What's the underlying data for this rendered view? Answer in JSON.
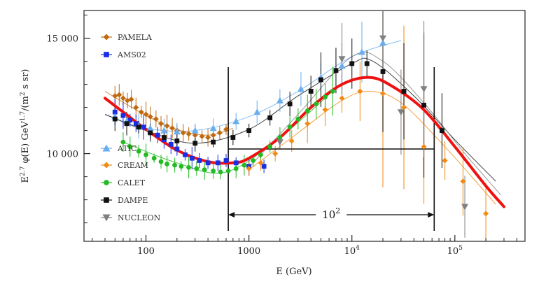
{
  "chart_data": {
    "type": "scatter",
    "title": "",
    "xlabel": "E (GeV)",
    "ylabel": "E^2.7 φ(E)  GeV^1.7/(m^2 s sr)",
    "xlabel_text": "E  (GeV)",
    "ylabel_main": "E",
    "ylabel_sup1": "2.7",
    "ylabel_mid": " φ(E)  GeV",
    "ylabel_sup2": "1.7",
    "ylabel_end": "/(m",
    "ylabel_sup3": "2",
    "ylabel_tail": " s sr)",
    "xscale": "log",
    "xlim": [
      25,
      480000
    ],
    "ylim": [
      6200,
      16200
    ],
    "xticks": [
      {
        "value": 100,
        "label": "100"
      },
      {
        "value": 1000,
        "label": "1000"
      },
      {
        "value": 10000,
        "label": "10",
        "sup": "4"
      },
      {
        "value": 100000,
        "label": "10",
        "sup": "5"
      }
    ],
    "yticks": [
      {
        "value": 10000,
        "label": "10 000"
      },
      {
        "value": 15000,
        "label": "15 000"
      }
    ],
    "annotation": {
      "label": "10",
      "sup": "2",
      "from_x": 630,
      "to_x": 63000,
      "line_y": 10200
    },
    "colors": {
      "PAMELA": "#c06a10",
      "AMS02": "#1a2ee6",
      "ATIC": "#6aaef0",
      "CREAM": "#f38a14",
      "CALET": "#22bb22",
      "DAMPE": "#111111",
      "NUCLEON": "#808080",
      "fit": "#ee1111"
    },
    "series": [
      {
        "name": "PAMELA",
        "marker": "diamond",
        "points": [
          [
            50,
            12500
          ],
          [
            55,
            12550
          ],
          [
            60,
            12400
          ],
          [
            66,
            12300
          ],
          [
            72,
            12350
          ],
          [
            80,
            12000
          ],
          [
            90,
            11800
          ],
          [
            100,
            11700
          ],
          [
            110,
            11600
          ],
          [
            125,
            11500
          ],
          [
            140,
            11300
          ],
          [
            160,
            11200
          ],
          [
            180,
            11100
          ],
          [
            200,
            11000
          ],
          [
            230,
            10900
          ],
          [
            260,
            10850
          ],
          [
            300,
            10800
          ],
          [
            350,
            10750
          ],
          [
            400,
            10700
          ],
          [
            450,
            10800
          ],
          [
            520,
            10900
          ],
          [
            600,
            11050
          ]
        ]
      },
      {
        "name": "AMS02",
        "marker": "square",
        "points": [
          [
            50,
            11800
          ],
          [
            60,
            11650
          ],
          [
            70,
            11450
          ],
          [
            80,
            11300
          ],
          [
            95,
            11150
          ],
          [
            110,
            10950
          ],
          [
            130,
            10800
          ],
          [
            150,
            10600
          ],
          [
            175,
            10400
          ],
          [
            200,
            10200
          ],
          [
            240,
            9950
          ],
          [
            280,
            9800
          ],
          [
            330,
            9700
          ],
          [
            400,
            9600
          ],
          [
            500,
            9600
          ],
          [
            600,
            9700
          ],
          [
            750,
            9600
          ],
          [
            1000,
            9450
          ],
          [
            1400,
            9450
          ]
        ]
      },
      {
        "name": "ATIC",
        "marker": "triangle",
        "points": [
          [
            50,
            11600
          ],
          [
            65,
            11400
          ],
          [
            85,
            11200
          ],
          [
            110,
            11100
          ],
          [
            150,
            11000
          ],
          [
            200,
            10950
          ],
          [
            300,
            11000
          ],
          [
            450,
            11100
          ],
          [
            750,
            11400
          ],
          [
            1200,
            11800
          ],
          [
            2000,
            12300
          ],
          [
            3200,
            12800
          ],
          [
            5000,
            13300
          ],
          [
            8000,
            13800
          ],
          [
            12500,
            14400
          ],
          [
            20000,
            14800
          ]
        ]
      },
      {
        "name": "CREAM",
        "marker": "diamond",
        "points": [
          [
            1000,
            9350
          ],
          [
            1300,
            9600
          ],
          [
            1800,
            10000
          ],
          [
            2600,
            10550
          ],
          [
            3700,
            11300
          ],
          [
            5500,
            11900
          ],
          [
            8000,
            12400
          ],
          [
            12000,
            12700
          ],
          [
            20000,
            12600
          ],
          [
            32000,
            12000
          ],
          [
            50000,
            10300
          ],
          [
            80000,
            9700
          ],
          [
            120000,
            8800
          ],
          [
            200000,
            7400
          ]
        ]
      },
      {
        "name": "CALET",
        "marker": "circle",
        "points": [
          [
            60,
            10500
          ],
          [
            70,
            10300
          ],
          [
            85,
            10100
          ],
          [
            100,
            9950
          ],
          [
            120,
            9800
          ],
          [
            140,
            9650
          ],
          [
            160,
            9550
          ],
          [
            190,
            9500
          ],
          [
            220,
            9450
          ],
          [
            260,
            9400
          ],
          [
            310,
            9350
          ],
          [
            370,
            9300
          ],
          [
            450,
            9250
          ],
          [
            530,
            9200
          ],
          [
            630,
            9250
          ],
          [
            750,
            9350
          ],
          [
            900,
            9500
          ],
          [
            1100,
            9700
          ],
          [
            1300,
            9950
          ],
          [
            1600,
            10300
          ],
          [
            2000,
            10700
          ],
          [
            2500,
            11150
          ],
          [
            3000,
            11500
          ],
          [
            3700,
            11850
          ],
          [
            4500,
            12150
          ],
          [
            5500,
            12450
          ],
          [
            6500,
            12700
          ]
        ]
      },
      {
        "name": "DAMPE",
        "marker": "square",
        "points": [
          [
            50,
            11500
          ],
          [
            65,
            11300
          ],
          [
            85,
            11150
          ],
          [
            110,
            10900
          ],
          [
            150,
            10700
          ],
          [
            200,
            10550
          ],
          [
            300,
            10450
          ],
          [
            450,
            10500
          ],
          [
            700,
            10700
          ],
          [
            1000,
            11000
          ],
          [
            1600,
            11550
          ],
          [
            2500,
            12150
          ],
          [
            4000,
            12700
          ],
          [
            5000,
            13200
          ],
          [
            7000,
            13600
          ],
          [
            10000,
            13900
          ],
          [
            14000,
            13900
          ],
          [
            20000,
            13550
          ],
          [
            32000,
            12700
          ],
          [
            50000,
            12100
          ],
          [
            75000,
            11000
          ]
        ]
      },
      {
        "name": "NUCLEON",
        "marker": "triangle-down",
        "points": [
          [
            2000,
            10500
          ],
          [
            8000,
            14100
          ],
          [
            20000,
            15000
          ],
          [
            30000,
            11800
          ],
          [
            50000,
            12800
          ],
          [
            125000,
            7700
          ]
        ]
      }
    ],
    "fit_curve": {
      "name": "model fit",
      "points": [
        [
          40,
          12400
        ],
        [
          60,
          11800
        ],
        [
          100,
          11050
        ],
        [
          200,
          10150
        ],
        [
          400,
          9650
        ],
        [
          700,
          9600
        ],
        [
          1000,
          9800
        ],
        [
          2000,
          10700
        ],
        [
          4000,
          12000
        ],
        [
          8000,
          13000
        ],
        [
          15000,
          13300
        ],
        [
          25000,
          12900
        ],
        [
          50000,
          11900
        ],
        [
          100000,
          10300
        ],
        [
          200000,
          8600
        ],
        [
          300000,
          7700
        ]
      ]
    },
    "guide_curves": [
      {
        "name": "PAMELA",
        "points": [
          [
            40,
            12700
          ],
          [
            100,
            11650
          ],
          [
            200,
            11050
          ],
          [
            400,
            10800
          ],
          [
            700,
            11100
          ]
        ]
      },
      {
        "name": "ATIC",
        "points": [
          [
            40,
            11700
          ],
          [
            100,
            11100
          ],
          [
            300,
            11000
          ],
          [
            1000,
            11600
          ],
          [
            3000,
            12700
          ],
          [
            10000,
            14200
          ],
          [
            30000,
            14900
          ]
        ]
      },
      {
        "name": "DAMPE",
        "points": [
          [
            40,
            11700
          ],
          [
            100,
            11000
          ],
          [
            300,
            10450
          ],
          [
            1000,
            11050
          ],
          [
            3000,
            12500
          ],
          [
            10000,
            13900
          ],
          [
            16000,
            14000
          ],
          [
            40000,
            12500
          ],
          [
            100000,
            10600
          ],
          [
            250000,
            8800
          ]
        ]
      },
      {
        "name": "NUCLEON",
        "points": [
          [
            1000,
            9400
          ],
          [
            3000,
            11700
          ],
          [
            10000,
            14200
          ],
          [
            20000,
            14000
          ],
          [
            50000,
            12200
          ],
          [
            120000,
            10100
          ],
          [
            280000,
            8200
          ]
        ]
      },
      {
        "name": "CREAM",
        "points": [
          [
            1000,
            9300
          ],
          [
            3000,
            10900
          ],
          [
            8000,
            12300
          ],
          [
            15000,
            12700
          ],
          [
            30000,
            12200
          ],
          [
            80000,
            10300
          ],
          [
            250000,
            7800
          ]
        ]
      },
      {
        "name": "CALET",
        "points": [
          [
            60,
            10500
          ],
          [
            200,
            9600
          ],
          [
            600,
            9200
          ],
          [
            2000,
            10700
          ],
          [
            6500,
            12700
          ]
        ]
      }
    ],
    "legend": {
      "placement": "left",
      "entries": [
        {
          "name": "PAMELA",
          "marker": "diamond"
        },
        {
          "name": "AMS02",
          "marker": "square"
        },
        {
          "name": "ATIC",
          "marker": "triangle"
        },
        {
          "name": "CREAM",
          "marker": "diamond"
        },
        {
          "name": "CALET",
          "marker": "circle"
        },
        {
          "name": "DAMPE",
          "marker": "square"
        },
        {
          "name": "NUCLEON",
          "marker": "triangle-down"
        }
      ]
    }
  }
}
